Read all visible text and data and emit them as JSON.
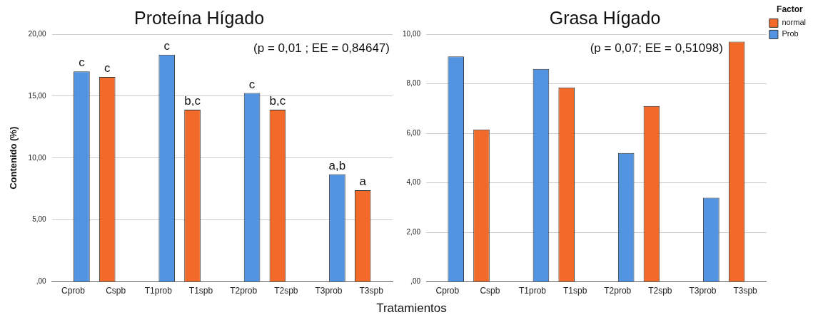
{
  "chart_data": [
    {
      "type": "bar",
      "title": "Proteína Hígado",
      "xlabel": "Tratamientos",
      "ylabel": "Contenido (%)",
      "categories": [
        "Cprob",
        "Cspb",
        "T1prob",
        "T1spb",
        "T2prob",
        "T2spb",
        "T3prob",
        "T3spb"
      ],
      "series": [
        {
          "color": "#f26a2a",
          "values": [
            null,
            16.55,
            null,
            13.9,
            null,
            13.9,
            null,
            7.4
          ]
        },
        {
          "color": "#5294e2",
          "values": [
            17.0,
            null,
            18.35,
            null,
            15.25,
            null,
            8.7,
            null
          ]
        }
      ],
      "ylim": [
        0,
        20
      ],
      "yticks": [
        {
          "value": 0,
          "label": ",00"
        },
        {
          "value": 5,
          "label": "5,00"
        },
        {
          "value": 10,
          "label": "10,00"
        },
        {
          "value": 15,
          "label": "15,00"
        },
        {
          "value": 20,
          "label": "20,00"
        }
      ],
      "grid": "y",
      "legend": false,
      "annotations": [
        "(p = 0,01 ; EE = 0,84647)",
        {
          "text": "c",
          "x": "Cprob",
          "y": 17.0
        },
        {
          "text": "c",
          "x": "Cspb",
          "y": 16.55
        },
        {
          "text": "c",
          "x": "T1prob",
          "y": 18.35
        },
        {
          "text": "b,c",
          "x": "T1spb",
          "y": 13.9
        },
        {
          "text": "c",
          "x": "T2prob",
          "y": 15.25
        },
        {
          "text": "b,c",
          "x": "T2spb",
          "y": 13.9
        },
        {
          "text": "a,b",
          "x": "T3prob",
          "y": 8.7
        },
        {
          "text": "a",
          "x": "T3spb",
          "y": 7.4
        }
      ]
    },
    {
      "type": "bar",
      "title": "Grasa Hígado",
      "legend_title": "Factor",
      "categories": [
        "Cprob",
        "Cspb",
        "T1prob",
        "T1spb",
        "T2prob",
        "T2spb",
        "T3prob",
        "T3spb"
      ],
      "series": [
        {
          "name": "normal",
          "color": "#f26a2a",
          "values": [
            null,
            6.15,
            null,
            7.85,
            null,
            7.1,
            null,
            9.7
          ]
        },
        {
          "name": "Prob",
          "color": "#5294e2",
          "values": [
            9.1,
            null,
            8.6,
            null,
            5.2,
            null,
            3.4,
            null
          ]
        }
      ],
      "ylim": [
        0,
        10
      ],
      "yticks": [
        {
          "value": 0,
          "label": ",00"
        },
        {
          "value": 2,
          "label": "2,00"
        },
        {
          "value": 4,
          "label": "4,00"
        },
        {
          "value": 6,
          "label": "6,00"
        },
        {
          "value": 8,
          "label": "8,00"
        },
        {
          "value": 10,
          "label": "10,00"
        }
      ],
      "grid": "y",
      "legend": "top right",
      "annotations": [
        "(p = 0,07; EE = 0,51098)"
      ]
    }
  ]
}
